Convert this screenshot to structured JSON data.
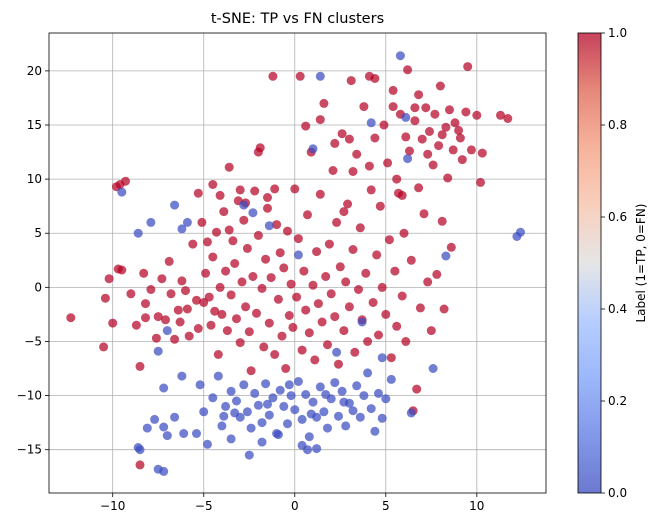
{
  "chart_data": {
    "type": "scatter",
    "title": "t-SNE: TP vs FN clusters",
    "xlim": [
      -13.5,
      13.8
    ],
    "ylim": [
      -19.0,
      23.5
    ],
    "grid": true,
    "x_ticks": [
      -10,
      -5,
      0,
      5,
      10
    ],
    "x_tick_labels": [
      "−10",
      "−5",
      "0",
      "5",
      "10"
    ],
    "y_ticks": [
      -15,
      -10,
      -5,
      0,
      5,
      10,
      15,
      20
    ],
    "y_tick_labels": [
      "−15",
      "−10",
      "−5",
      "0",
      "5",
      "10",
      "15",
      "20"
    ],
    "colorbar": {
      "label": "Label (1=TP, 0=FN)",
      "range": [
        0.0,
        1.0
      ],
      "ticks": [
        0.0,
        0.2,
        0.4,
        0.6,
        0.8,
        1.0
      ],
      "tick_labels": [
        "0.0",
        "0.2",
        "0.4",
        "0.6",
        "0.8",
        "1.0"
      ],
      "colormap": "coolwarm",
      "low_color": "#3b4cc0",
      "high_color": "#b40426"
    },
    "series": [
      {
        "label_value": 1,
        "color": "#b40426",
        "points": [
          [
            -12.3,
            -2.8
          ],
          [
            -10.5,
            -5.5
          ],
          [
            -10.4,
            -1.0
          ],
          [
            -10.2,
            0.8
          ],
          [
            -10.0,
            -3.3
          ],
          [
            -9.8,
            9.3
          ],
          [
            -9.7,
            1.7
          ],
          [
            -9.6,
            9.5
          ],
          [
            -9.5,
            1.6
          ],
          [
            -9.3,
            9.8
          ],
          [
            -9.0,
            -0.6
          ],
          [
            -8.7,
            -3.5
          ],
          [
            -8.5,
            -7.3
          ],
          [
            -8.5,
            -16.4
          ],
          [
            -8.3,
            1.3
          ],
          [
            -8.2,
            -1.5
          ],
          [
            -8.2,
            -2.8
          ],
          [
            -7.9,
            -0.2
          ],
          [
            -7.6,
            -4.7
          ],
          [
            -7.5,
            -2.7
          ],
          [
            -7.3,
            0.8
          ],
          [
            -7.1,
            -3.0
          ],
          [
            -6.9,
            2.4
          ],
          [
            -6.8,
            -0.6
          ],
          [
            -6.6,
            -4.8
          ],
          [
            -6.4,
            -2.1
          ],
          [
            -6.3,
            -3.2
          ],
          [
            -6.2,
            0.6
          ],
          [
            -6.0,
            -0.3
          ],
          [
            -5.9,
            -2.0
          ],
          [
            -5.8,
            -4.5
          ],
          [
            -5.6,
            4.0
          ],
          [
            -5.4,
            -1.2
          ],
          [
            -5.3,
            -3.8
          ],
          [
            -5.1,
            6.0
          ],
          [
            -5.0,
            -1.4
          ],
          [
            -4.9,
            1.3
          ],
          [
            -4.8,
            4.2
          ],
          [
            -4.7,
            -0.9
          ],
          [
            -4.6,
            -3.5
          ],
          [
            -4.5,
            2.8
          ],
          [
            -4.4,
            -2.2
          ],
          [
            -4.3,
            5.1
          ],
          [
            -4.2,
            -6.2
          ],
          [
            -4.1,
            0.0
          ],
          [
            -4.0,
            -2.5
          ],
          [
            -3.9,
            7.0
          ],
          [
            -3.8,
            1.5
          ],
          [
            -3.7,
            -4.0
          ],
          [
            -3.6,
            5.3
          ],
          [
            -3.5,
            -0.7
          ],
          [
            -3.4,
            4.3
          ],
          [
            -3.3,
            2.2
          ],
          [
            -3.2,
            -2.9
          ],
          [
            -3.1,
            8.0
          ],
          [
            -3.0,
            -5.1
          ],
          [
            -2.9,
            0.5
          ],
          [
            -2.8,
            6.2
          ],
          [
            -2.7,
            -1.8
          ],
          [
            -2.6,
            3.6
          ],
          [
            -2.5,
            -4.1
          ],
          [
            -2.4,
            -7.7
          ],
          [
            -2.3,
            1.0
          ],
          [
            -2.2,
            8.9
          ],
          [
            -2.1,
            -2.4
          ],
          [
            -2.0,
            4.8
          ],
          [
            -1.9,
            12.9
          ],
          [
            -1.8,
            -0.1
          ],
          [
            -1.7,
            -5.5
          ],
          [
            -1.6,
            2.6
          ],
          [
            -1.5,
            7.3
          ],
          [
            -1.4,
            -3.3
          ],
          [
            -1.3,
            0.9
          ],
          [
            -1.2,
            19.5
          ],
          [
            -1.1,
            -6.2
          ],
          [
            -1.0,
            5.8
          ],
          [
            -0.9,
            -1.1
          ],
          [
            -0.8,
            3.2
          ],
          [
            -0.7,
            -4.5
          ],
          [
            -0.6,
            1.8
          ],
          [
            -0.5,
            -7.5
          ],
          [
            -0.4,
            5.2
          ],
          [
            -0.3,
            -2.6
          ],
          [
            -0.2,
            0.3
          ],
          [
            -0.1,
            -3.7
          ],
          [
            0.0,
            9.1
          ],
          [
            0.1,
            -0.9
          ],
          [
            0.2,
            4.5
          ],
          [
            0.3,
            19.5
          ],
          [
            0.4,
            -5.8
          ],
          [
            0.5,
            1.5
          ],
          [
            0.6,
            -2.1
          ],
          [
            0.7,
            6.7
          ],
          [
            0.8,
            -4.2
          ],
          [
            0.9,
            12.5
          ],
          [
            1.0,
            0.2
          ],
          [
            1.1,
            -6.7
          ],
          [
            1.2,
            3.3
          ],
          [
            1.3,
            -1.5
          ],
          [
            1.4,
            8.6
          ],
          [
            1.5,
            -3.2
          ],
          [
            1.6,
            17.0
          ],
          [
            1.7,
            1.0
          ],
          [
            1.8,
            -5.3
          ],
          [
            1.9,
            4.0
          ],
          [
            2.0,
            -0.6
          ],
          [
            2.1,
            10.8
          ],
          [
            2.2,
            -2.7
          ],
          [
            2.3,
            6.0
          ],
          [
            2.4,
            -7.1
          ],
          [
            2.5,
            1.9
          ],
          [
            2.6,
            14.2
          ],
          [
            2.7,
            -4.0
          ],
          [
            2.8,
            0.5
          ],
          [
            2.9,
            7.7
          ],
          [
            3.0,
            -1.8
          ],
          [
            3.1,
            19.1
          ],
          [
            3.2,
            3.5
          ],
          [
            3.3,
            -6.0
          ],
          [
            3.4,
            12.3
          ],
          [
            3.5,
            -0.2
          ],
          [
            3.6,
            5.5
          ],
          [
            3.7,
            -3.0
          ],
          [
            3.8,
            16.7
          ],
          [
            3.9,
            1.3
          ],
          [
            4.0,
            -5.0
          ],
          [
            4.1,
            19.5
          ],
          [
            4.2,
            9.0
          ],
          [
            4.3,
            -1.4
          ],
          [
            4.4,
            13.8
          ],
          [
            4.5,
            3.0
          ],
          [
            4.6,
            -4.4
          ],
          [
            4.7,
            7.5
          ],
          [
            4.8,
            0.0
          ],
          [
            4.9,
            15.0
          ],
          [
            5.0,
            -2.5
          ],
          [
            5.1,
            11.5
          ],
          [
            5.2,
            4.4
          ],
          [
            5.3,
            -6.5
          ],
          [
            5.4,
            18.2
          ],
          [
            5.5,
            1.5
          ],
          [
            5.6,
            -3.6
          ],
          [
            5.7,
            8.7
          ],
          [
            5.8,
            16.0
          ],
          [
            5.9,
            -0.8
          ],
          [
            6.0,
            5.0
          ],
          [
            6.1,
            -5.0
          ],
          [
            6.2,
            20.1
          ],
          [
            6.3,
            12.6
          ],
          [
            6.4,
            2.5
          ],
          [
            6.5,
            -11.4
          ],
          [
            6.6,
            16.6
          ],
          [
            6.7,
            -9.4
          ],
          [
            6.8,
            9.2
          ],
          [
            6.9,
            -1.9
          ],
          [
            7.0,
            13.7
          ],
          [
            7.1,
            6.8
          ],
          [
            7.2,
            16.6
          ],
          [
            7.3,
            0.5
          ],
          [
            7.4,
            14.4
          ],
          [
            7.5,
            -4.0
          ],
          [
            7.6,
            11.3
          ],
          [
            7.7,
            16.0
          ],
          [
            7.8,
            1.2
          ],
          [
            7.9,
            13.1
          ],
          [
            8.0,
            18.6
          ],
          [
            8.1,
            6.1
          ],
          [
            8.2,
            -2.0
          ],
          [
            8.3,
            14.8
          ],
          [
            8.4,
            10.1
          ],
          [
            8.5,
            16.4
          ],
          [
            8.6,
            3.7
          ],
          [
            8.7,
            12.7
          ],
          [
            8.8,
            15.2
          ],
          [
            9.0,
            14.5
          ],
          [
            9.2,
            11.8
          ],
          [
            9.4,
            16.2
          ],
          [
            9.5,
            20.4
          ],
          [
            9.7,
            12.7
          ],
          [
            10.0,
            15.9
          ],
          [
            10.2,
            9.7
          ],
          [
            10.3,
            12.4
          ],
          [
            11.3,
            15.9
          ],
          [
            11.7,
            15.6
          ],
          [
            5.4,
            16.7
          ],
          [
            6.8,
            17.8
          ],
          [
            4.4,
            19.3
          ],
          [
            8.1,
            14.1
          ],
          [
            9.1,
            13.8
          ],
          [
            -3.6,
            11.1
          ],
          [
            -2.0,
            12.5
          ],
          [
            -1.5,
            8.3
          ],
          [
            -4.5,
            9.5
          ],
          [
            -4.1,
            8.5
          ],
          [
            -3.0,
            9.0
          ],
          [
            -2.7,
            7.8
          ],
          [
            -5.3,
            8.7
          ],
          [
            -1.1,
            9.1
          ],
          [
            0.6,
            14.9
          ],
          [
            1.4,
            15.5
          ],
          [
            2.2,
            13.3
          ],
          [
            3.0,
            13.7
          ],
          [
            3.2,
            10.7
          ],
          [
            4.1,
            11.2
          ],
          [
            5.6,
            10.0
          ],
          [
            6.1,
            13.9
          ],
          [
            6.6,
            15.4
          ],
          [
            7.3,
            12.3
          ],
          [
            5.9,
            8.5
          ],
          [
            2.7,
            7.0
          ]
        ]
      },
      {
        "label_value": 0,
        "color": "#3b4cc0",
        "points": [
          [
            -9.5,
            8.8
          ],
          [
            -8.6,
            5.0
          ],
          [
            -7.9,
            6.0
          ],
          [
            -6.6,
            7.6
          ],
          [
            -6.2,
            5.4
          ],
          [
            -5.9,
            6.0
          ],
          [
            -2.8,
            7.6
          ],
          [
            -1.4,
            5.7
          ],
          [
            -2.3,
            6.9
          ],
          [
            0.2,
            3.0
          ],
          [
            1.0,
            12.8
          ],
          [
            1.4,
            19.5
          ],
          [
            4.2,
            15.2
          ],
          [
            5.8,
            21.4
          ],
          [
            6.1,
            15.7
          ],
          [
            6.2,
            11.9
          ],
          [
            8.3,
            2.9
          ],
          [
            12.2,
            4.7
          ],
          [
            12.4,
            5.1
          ],
          [
            7.6,
            -7.5
          ],
          [
            4.8,
            -6.5
          ],
          [
            3.7,
            -3.2
          ],
          [
            2.3,
            -6.0
          ],
          [
            -7.5,
            -5.9
          ],
          [
            -7.2,
            -9.3
          ],
          [
            -7.0,
            -4.0
          ],
          [
            -6.2,
            -8.2
          ],
          [
            -5.2,
            -9.0
          ],
          [
            -5.0,
            -11.5
          ],
          [
            -4.5,
            -10.2
          ],
          [
            -4.2,
            -8.2
          ],
          [
            -4.0,
            -12.8
          ],
          [
            -3.8,
            -11.0
          ],
          [
            -3.5,
            -9.6
          ],
          [
            -3.2,
            -10.5
          ],
          [
            -3.0,
            -12.0
          ],
          [
            -2.8,
            -9.0
          ],
          [
            -2.6,
            -11.5
          ],
          [
            -2.4,
            -13.0
          ],
          [
            -2.2,
            -9.8
          ],
          [
            -2.0,
            -10.9
          ],
          [
            -1.8,
            -12.5
          ],
          [
            -1.6,
            -8.9
          ],
          [
            -1.4,
            -11.8
          ],
          [
            -1.2,
            -10.2
          ],
          [
            -1.0,
            -13.5
          ],
          [
            -0.8,
            -9.5
          ],
          [
            -0.6,
            -11.0
          ],
          [
            -0.4,
            -12.6
          ],
          [
            -0.2,
            -10.0
          ],
          [
            0.0,
            -11.3
          ],
          [
            0.2,
            -8.7
          ],
          [
            0.4,
            -12.2
          ],
          [
            0.6,
            -9.9
          ],
          [
            0.8,
            -13.8
          ],
          [
            1.0,
            -10.6
          ],
          [
            1.2,
            -12.0
          ],
          [
            1.4,
            -9.2
          ],
          [
            1.6,
            -11.5
          ],
          [
            1.8,
            -13.0
          ],
          [
            2.0,
            -10.3
          ],
          [
            2.2,
            -8.8
          ],
          [
            2.4,
            -11.9
          ],
          [
            2.6,
            -9.6
          ],
          [
            2.8,
            -12.8
          ],
          [
            3.0,
            -10.7
          ],
          [
            3.2,
            -11.4
          ],
          [
            3.4,
            -9.1
          ],
          [
            3.6,
            -12.0
          ],
          [
            3.8,
            -10.0
          ],
          [
            4.0,
            -7.9
          ],
          [
            4.2,
            -11.2
          ],
          [
            4.4,
            -13.3
          ],
          [
            4.6,
            -9.8
          ],
          [
            4.8,
            -12.1
          ],
          [
            5.0,
            -10.3
          ],
          [
            5.3,
            -8.5
          ],
          [
            6.4,
            -11.6
          ],
          [
            1.2,
            -14.9
          ],
          [
            -8.6,
            -14.8
          ],
          [
            -8.5,
            -15.0
          ],
          [
            -8.1,
            -13.0
          ],
          [
            -7.7,
            -12.2
          ],
          [
            -7.5,
            -16.8
          ],
          [
            -7.2,
            -17.0
          ],
          [
            -7.2,
            -12.9
          ],
          [
            -7.0,
            -13.7
          ],
          [
            -6.6,
            -12.0
          ],
          [
            -6.1,
            -13.5
          ],
          [
            -5.4,
            -13.5
          ],
          [
            -4.8,
            -14.5
          ],
          [
            -3.5,
            -14.0
          ],
          [
            -2.5,
            -15.5
          ],
          [
            -1.8,
            -14.3
          ],
          [
            -0.9,
            -13.6
          ],
          [
            0.4,
            -14.6
          ],
          [
            0.7,
            -15.0
          ],
          [
            -3.9,
            -11.9
          ],
          [
            -3.3,
            -11.6
          ],
          [
            -1.5,
            -10.8
          ],
          [
            -0.3,
            -9.0
          ],
          [
            0.9,
            -11.7
          ],
          [
            1.7,
            -9.9
          ],
          [
            2.7,
            -10.6
          ]
        ]
      }
    ]
  }
}
